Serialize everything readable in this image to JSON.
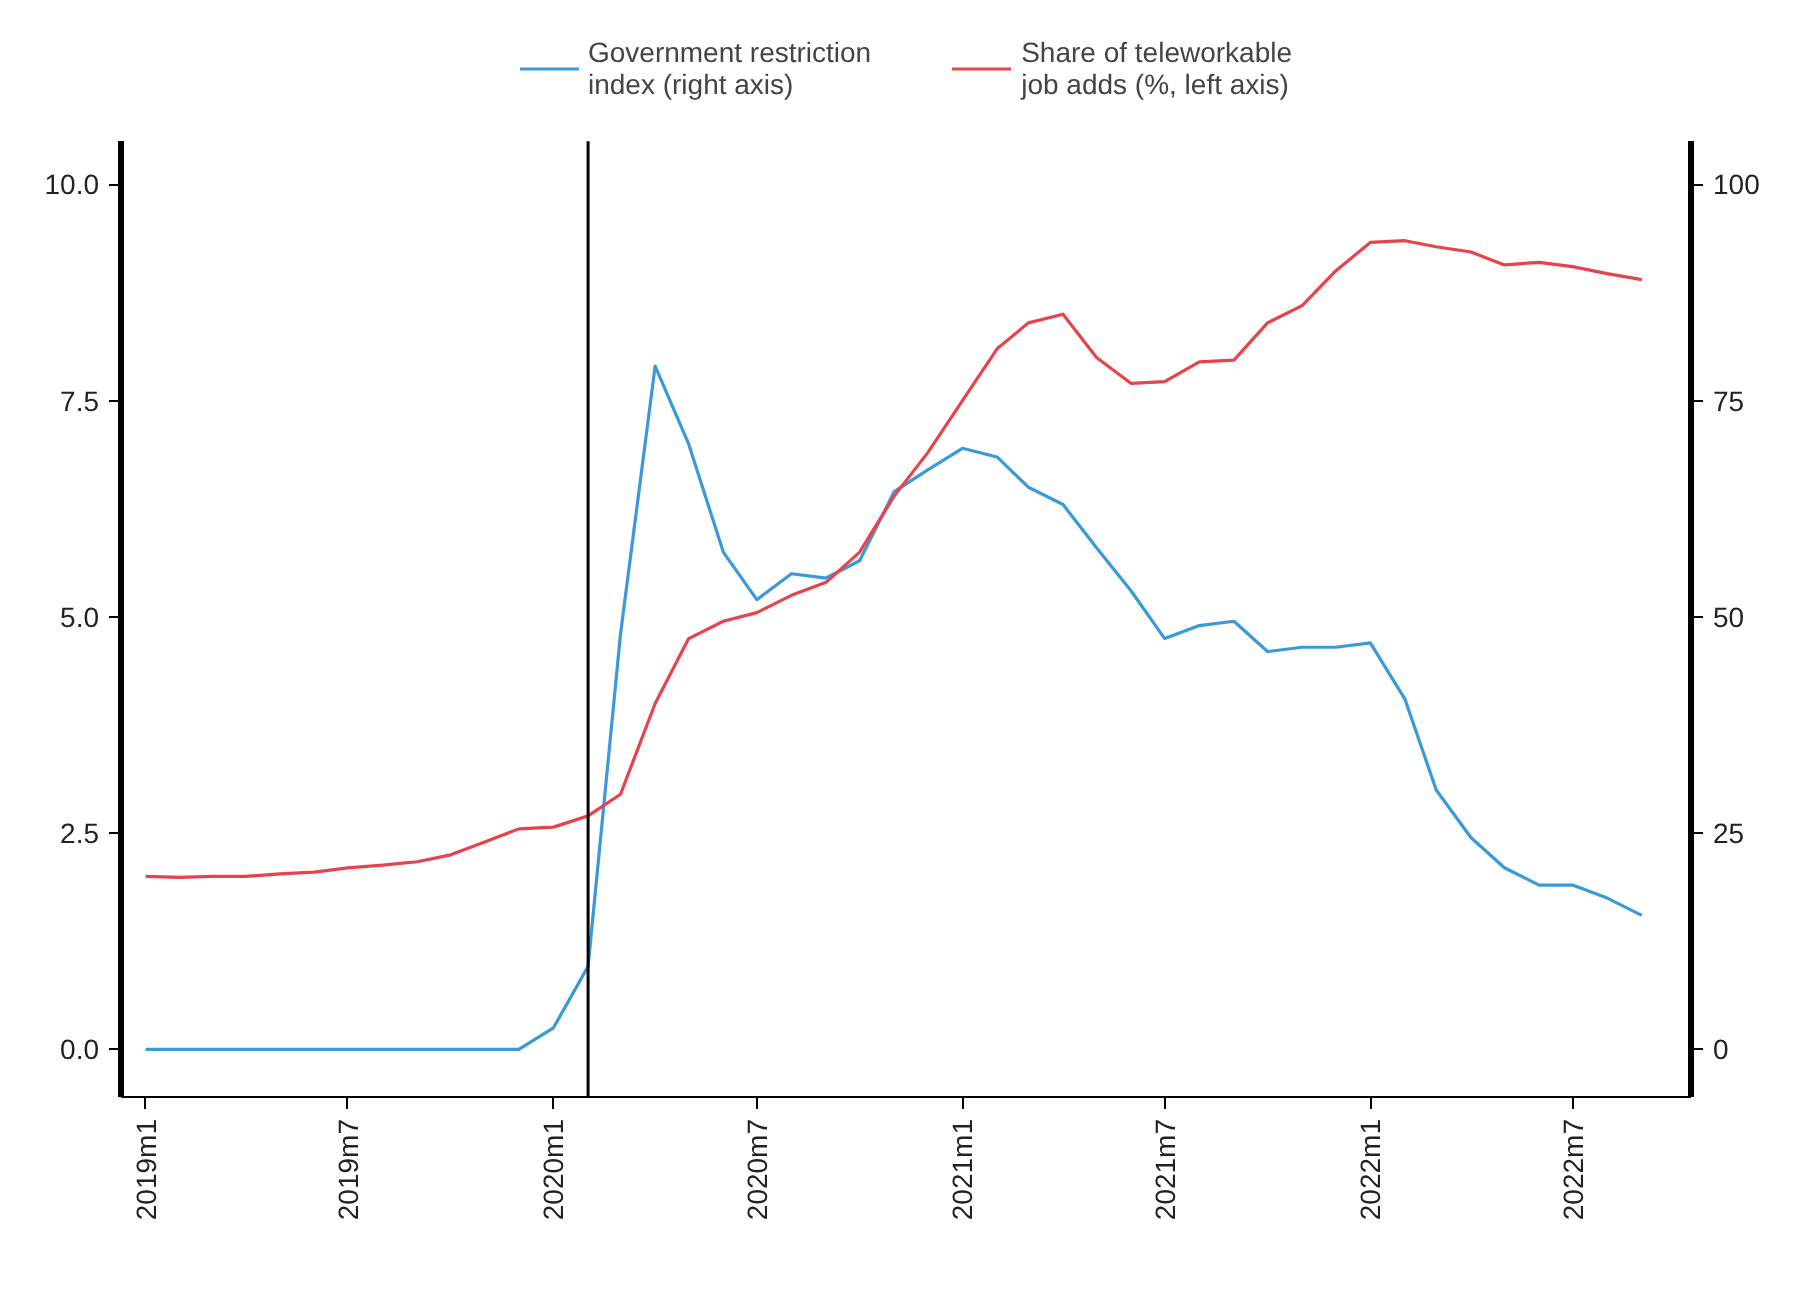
{
  "chart_data": {
    "type": "line",
    "x": [
      "2019-01",
      "2019-02",
      "2019-03",
      "2019-04",
      "2019-05",
      "2019-06",
      "2019-07",
      "2019-08",
      "2019-09",
      "2019-10",
      "2019-11",
      "2019-12",
      "2020-01",
      "2020-02",
      "2020-03",
      "2020-04",
      "2020-05",
      "2020-06",
      "2020-07",
      "2020-08",
      "2020-09",
      "2020-10",
      "2020-11",
      "2020-12",
      "2021-01",
      "2021-02",
      "2021-03",
      "2021-04",
      "2021-05",
      "2021-06",
      "2021-07",
      "2021-08",
      "2021-09",
      "2021-10",
      "2021-11",
      "2021-12",
      "2022-01",
      "2022-02",
      "2022-03",
      "2022-04",
      "2022-05",
      "2022-06",
      "2022-07",
      "2022-08",
      "2022-09"
    ],
    "series": [
      {
        "name": "Government restriction\nindex (right axis)",
        "color": "#3a9ad9",
        "axis": "y2",
        "values": [
          0,
          0,
          0,
          0,
          0,
          0,
          0,
          0,
          0,
          0,
          0,
          0,
          2.5,
          9.6,
          48,
          79,
          70,
          57.5,
          52,
          55,
          54.5,
          56.5,
          64.5,
          67,
          69.5,
          68.5,
          65,
          63,
          58,
          53,
          47.5,
          49,
          49.5,
          46,
          46.5,
          46.5,
          47,
          40.5,
          30,
          24.5,
          21,
          19,
          19,
          17.5,
          15.5
        ]
      },
      {
        "name": "Share of teleworkable\njob adds (%, left axis)",
        "color": "#e8434a",
        "values": [
          2.0,
          1.99,
          2.0,
          2.0,
          2.03,
          2.05,
          2.1,
          2.13,
          2.17,
          2.25,
          2.4,
          2.55,
          2.57,
          2.7,
          2.95,
          4.0,
          4.75,
          4.95,
          5.05,
          5.25,
          5.4,
          5.75,
          6.4,
          6.9,
          7.5,
          8.1,
          8.4,
          8.5,
          8.0,
          7.7,
          7.72,
          7.95,
          7.97,
          8.4,
          8.6,
          9.0,
          9.33,
          9.35,
          9.28,
          9.22,
          9.07,
          9.1,
          9.05,
          8.97,
          8.9
        ]
      }
    ],
    "xlim": [
      "2018-12-10",
      "2022-10-15"
    ],
    "xticks": [
      {
        "value": "2019-01",
        "label": "2019m1"
      },
      {
        "value": "2019-07",
        "label": "2019m7"
      },
      {
        "value": "2020-01",
        "label": "2020m1"
      },
      {
        "value": "2020-07",
        "label": "2020m7"
      },
      {
        "value": "2021-01",
        "label": "2021m1"
      },
      {
        "value": "2021-07",
        "label": "2021m7"
      },
      {
        "value": "2022-01",
        "label": "2022m1"
      },
      {
        "value": "2022-07",
        "label": "2022m7"
      }
    ],
    "ylim": [
      -0.55,
      10.5
    ],
    "yticks": [
      {
        "value": 0,
        "label": "0.0"
      },
      {
        "value": 2.5,
        "label": "2.5"
      },
      {
        "value": 5,
        "label": "5.0"
      },
      {
        "value": 7.5,
        "label": "7.5"
      },
      {
        "value": 10,
        "label": "10.0"
      }
    ],
    "y2lim": [
      -5.5,
      105
    ],
    "y2ticks": [
      0,
      25,
      50,
      75,
      100
    ],
    "ref_lines": [
      {
        "axis": "x",
        "value": "2020-02",
        "color": "#000000"
      }
    ],
    "legend": "top",
    "grid": false
  }
}
